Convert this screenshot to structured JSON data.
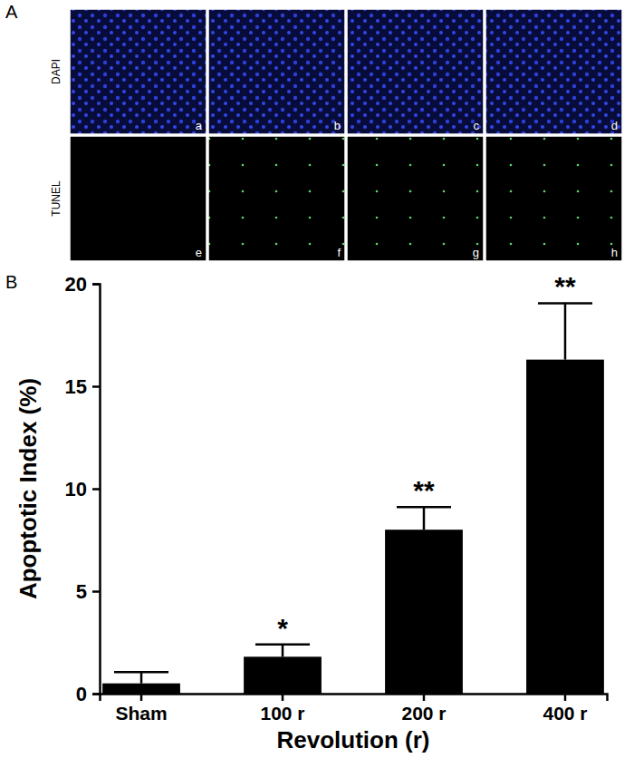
{
  "panel_labels": [
    "A",
    "B"
  ],
  "images": {
    "row_labels": [
      "DAPI",
      "TUNEL"
    ],
    "panel_letters": [
      "a",
      "b",
      "c",
      "d",
      "e",
      "f",
      "g",
      "h"
    ]
  },
  "chart_data": {
    "type": "bar",
    "categories": [
      "Sham",
      "100 r",
      "200 r",
      "400 r"
    ],
    "values": [
      0.5,
      1.8,
      8.0,
      16.3
    ],
    "errors": [
      0.55,
      0.6,
      1.1,
      2.75
    ],
    "significance": [
      null,
      "*",
      "**",
      "**"
    ],
    "color": "#000000",
    "x_label": "Revolution (r)",
    "y_label": "Apoptotic Index (%)",
    "ylim": [
      0,
      20
    ],
    "yticks": [
      0,
      5,
      10,
      15,
      20
    ],
    "grid": false
  }
}
